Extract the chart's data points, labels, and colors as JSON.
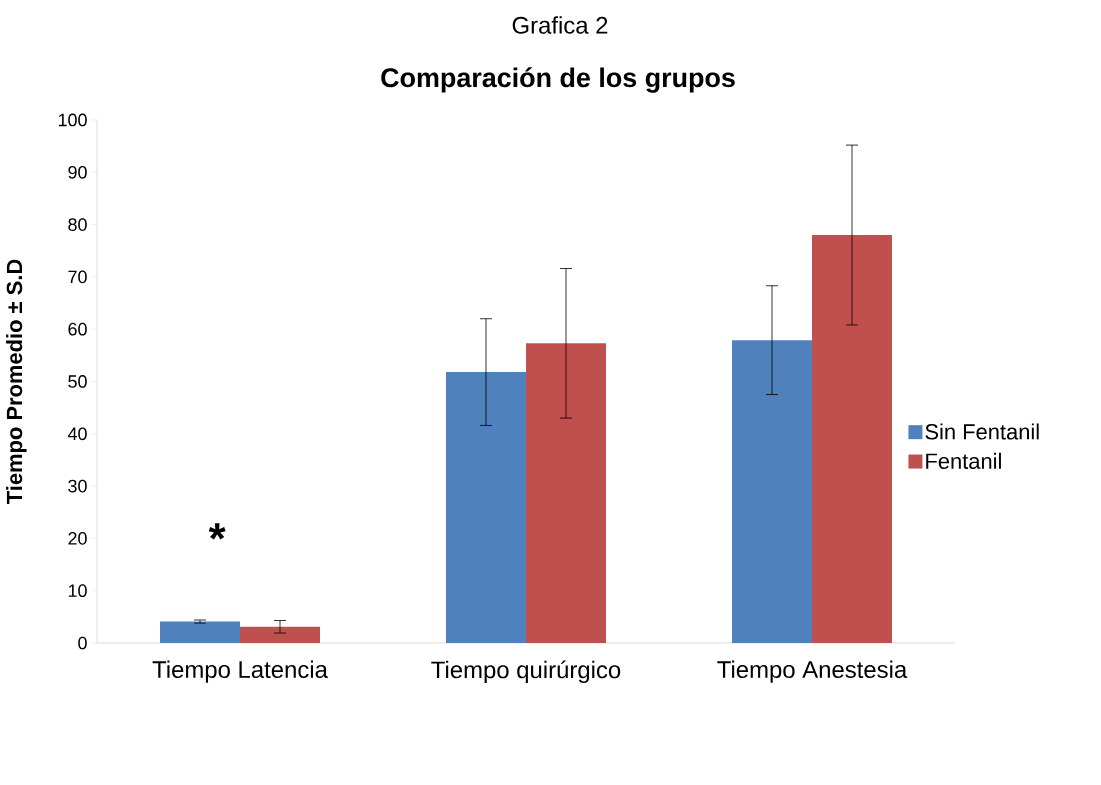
{
  "chart_data": {
    "type": "bar",
    "title": "Grafica 2",
    "subtitle": "Comparación de los grupos",
    "ylabel": "Tiempo Promedio ± S.D",
    "categories": [
      "Tiempo Latencia",
      "Tiempo quirúrgico",
      "Tiempo Anestesia"
    ],
    "series": [
      {
        "name": "Sin Fentanil",
        "color": "#4f81bd",
        "values": [
          4.1,
          51.8,
          57.9
        ],
        "errors": [
          0.3,
          10.2,
          10.4
        ]
      },
      {
        "name": "Fentanil",
        "color": "#c0504d",
        "values": [
          3.1,
          57.3,
          78.0
        ],
        "errors": [
          1.2,
          14.3,
          17.2
        ]
      }
    ],
    "ylim": [
      0,
      100
    ],
    "yticks": [
      0,
      10,
      20,
      30,
      40,
      50,
      60,
      70,
      80,
      90,
      100
    ],
    "legend": "right",
    "annotations": [
      "*"
    ]
  }
}
